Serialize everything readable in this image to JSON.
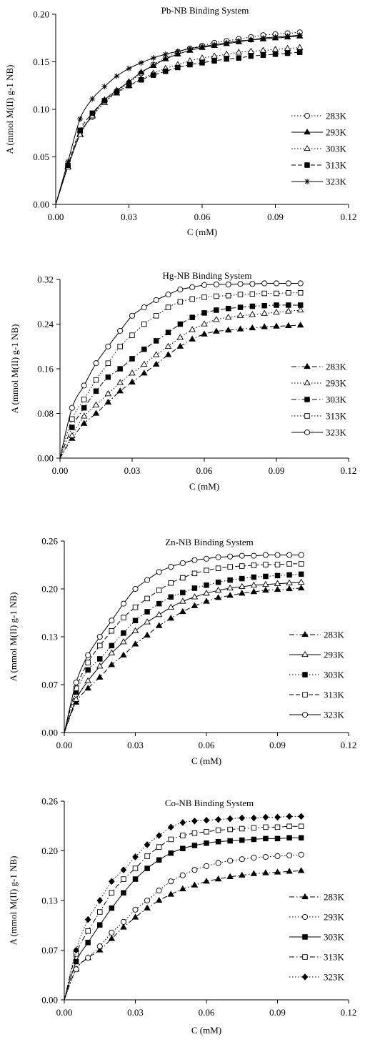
{
  "chart_data": [
    {
      "type": "line",
      "title": "Pb-NB Binding System",
      "xlabel": "C (mM)",
      "ylabel": "A (mmol M(II) g-1 NB)",
      "xlim": [
        0,
        0.12
      ],
      "ylim": [
        0,
        0.2
      ],
      "xticks": [
        "0.00",
        "0.03",
        "0.06",
        "0.09",
        "0.12"
      ],
      "yticks": [
        "0.00",
        "0.05",
        "0.10",
        "0.15",
        "0.20"
      ],
      "legend_position": "right",
      "x": [
        0,
        0.005,
        0.01,
        0.015,
        0.02,
        0.025,
        0.03,
        0.035,
        0.04,
        0.045,
        0.05,
        0.055,
        0.06,
        0.065,
        0.07,
        0.075,
        0.08,
        0.085,
        0.09,
        0.095,
        0.1
      ],
      "series": [
        {
          "name": "283K",
          "marker": "circle-open",
          "dash": "dot",
          "values": [
            0,
            0.04,
            0.076,
            0.092,
            0.108,
            0.119,
            0.128,
            0.138,
            0.147,
            0.154,
            0.16,
            0.164,
            0.167,
            0.17,
            0.172,
            0.174,
            0.176,
            0.178,
            0.179,
            0.18,
            0.181
          ]
        },
        {
          "name": "293K",
          "marker": "triangle-filled",
          "dash": "solid",
          "values": [
            0,
            0.04,
            0.074,
            0.094,
            0.11,
            0.12,
            0.129,
            0.139,
            0.146,
            0.153,
            0.158,
            0.162,
            0.165,
            0.167,
            0.169,
            0.171,
            0.173,
            0.174,
            0.175,
            0.176,
            0.177
          ]
        },
        {
          "name": "303K",
          "marker": "triangle-open",
          "dash": "dot",
          "values": [
            0,
            0.039,
            0.073,
            0.093,
            0.107,
            0.117,
            0.125,
            0.132,
            0.138,
            0.143,
            0.147,
            0.151,
            0.154,
            0.156,
            0.158,
            0.16,
            0.161,
            0.162,
            0.163,
            0.164,
            0.165
          ]
        },
        {
          "name": "313K",
          "marker": "square-filled",
          "dash": "dash",
          "values": [
            0,
            0.041,
            0.078,
            0.096,
            0.109,
            0.118,
            0.125,
            0.131,
            0.136,
            0.14,
            0.144,
            0.147,
            0.149,
            0.151,
            0.153,
            0.154,
            0.156,
            0.157,
            0.158,
            0.159,
            0.16
          ]
        },
        {
          "name": "323K",
          "marker": "star",
          "dash": "solid",
          "values": [
            0,
            0.045,
            0.09,
            0.111,
            0.124,
            0.135,
            0.143,
            0.149,
            0.154,
            0.158,
            0.161,
            0.164,
            0.166,
            0.168,
            0.17,
            0.172,
            0.173,
            0.175,
            0.176,
            0.177,
            0.178
          ]
        }
      ]
    },
    {
      "type": "line",
      "title": "Hg-NB Binding System",
      "xlabel": "C (mM)",
      "ylabel": "A (mmol M(II) g-1 NB)",
      "xlim": [
        0,
        0.12
      ],
      "ylim": [
        0,
        0.32
      ],
      "xticks": [
        "0.00",
        "0.03",
        "0.06",
        "0.09",
        "0.12"
      ],
      "yticks": [
        "0.00",
        "0.08",
        "0.16",
        "0.24",
        "0.32"
      ],
      "legend_position": "right",
      "x": [
        0,
        0.005,
        0.01,
        0.015,
        0.02,
        0.025,
        0.03,
        0.035,
        0.04,
        0.045,
        0.05,
        0.055,
        0.06,
        0.065,
        0.07,
        0.075,
        0.08,
        0.085,
        0.09,
        0.095,
        0.1
      ],
      "series": [
        {
          "name": "283K",
          "marker": "triangle-filled",
          "dash": "dashdot",
          "values": [
            0,
            0.035,
            0.062,
            0.08,
            0.1,
            0.12,
            0.136,
            0.152,
            0.168,
            0.185,
            0.2,
            0.213,
            0.222,
            0.227,
            0.229,
            0.231,
            0.233,
            0.235,
            0.236,
            0.237,
            0.238
          ]
        },
        {
          "name": "293K",
          "marker": "triangle-open",
          "dash": "dot",
          "values": [
            0,
            0.04,
            0.075,
            0.095,
            0.115,
            0.135,
            0.152,
            0.168,
            0.185,
            0.2,
            0.216,
            0.23,
            0.24,
            0.248,
            0.252,
            0.255,
            0.257,
            0.259,
            0.261,
            0.263,
            0.265
          ]
        },
        {
          "name": "303K",
          "marker": "square-filled",
          "dash": "dashdot",
          "values": [
            0,
            0.055,
            0.09,
            0.12,
            0.145,
            0.16,
            0.178,
            0.195,
            0.21,
            0.225,
            0.24,
            0.252,
            0.26,
            0.265,
            0.268,
            0.27,
            0.272,
            0.273,
            0.274,
            0.274,
            0.274
          ]
        },
        {
          "name": "313K",
          "marker": "square-open",
          "dash": "dot",
          "values": [
            0,
            0.07,
            0.105,
            0.14,
            0.17,
            0.2,
            0.22,
            0.24,
            0.255,
            0.27,
            0.28,
            0.285,
            0.288,
            0.29,
            0.291,
            0.293,
            0.294,
            0.295,
            0.295,
            0.296,
            0.296
          ]
        },
        {
          "name": "323K",
          "marker": "circle-open",
          "dash": "solid",
          "values": [
            0,
            0.09,
            0.13,
            0.17,
            0.2,
            0.228,
            0.255,
            0.27,
            0.283,
            0.293,
            0.302,
            0.306,
            0.31,
            0.311,
            0.311,
            0.312,
            0.312,
            0.313,
            0.313,
            0.313,
            0.313
          ]
        }
      ]
    },
    {
      "type": "line",
      "title": "Zn-NB Binding System",
      "xlabel": "C (mM)",
      "ylabel": "A (mmol M(II) g-1 NB)",
      "xlim": [
        0,
        0.12
      ],
      "ylim": [
        0,
        0.26
      ],
      "xticks": [
        "0.00",
        "0.03",
        "0.06",
        "0.09",
        "0.12"
      ],
      "yticks": [
        "0.00",
        "0.07",
        "0.13",
        "0.20",
        "0.26"
      ],
      "legend_position": "right",
      "x": [
        0,
        0.005,
        0.01,
        0.015,
        0.02,
        0.025,
        0.03,
        0.035,
        0.04,
        0.045,
        0.05,
        0.055,
        0.06,
        0.065,
        0.07,
        0.075,
        0.08,
        0.085,
        0.09,
        0.095,
        0.1
      ],
      "series": [
        {
          "name": "283K",
          "marker": "triangle-filled",
          "dash": "dashdot",
          "values": [
            0,
            0.041,
            0.06,
            0.075,
            0.092,
            0.105,
            0.12,
            0.132,
            0.145,
            0.155,
            0.164,
            0.172,
            0.178,
            0.183,
            0.186,
            0.189,
            0.191,
            0.193,
            0.194,
            0.195,
            0.196
          ]
        },
        {
          "name": "293K",
          "marker": "triangle-open",
          "dash": "solid",
          "values": [
            0,
            0.045,
            0.07,
            0.09,
            0.108,
            0.123,
            0.138,
            0.15,
            0.16,
            0.17,
            0.178,
            0.184,
            0.189,
            0.193,
            0.196,
            0.198,
            0.2,
            0.201,
            0.202,
            0.203,
            0.204
          ]
        },
        {
          "name": "303K",
          "marker": "square-filled",
          "dash": "dot",
          "values": [
            0,
            0.055,
            0.085,
            0.1,
            0.118,
            0.135,
            0.152,
            0.164,
            0.175,
            0.184,
            0.19,
            0.196,
            0.2,
            0.204,
            0.207,
            0.209,
            0.211,
            0.212,
            0.213,
            0.214,
            0.215
          ]
        },
        {
          "name": "313K",
          "marker": "square-open",
          "dash": "dash",
          "values": [
            0,
            0.06,
            0.095,
            0.118,
            0.138,
            0.156,
            0.17,
            0.182,
            0.193,
            0.203,
            0.21,
            0.216,
            0.22,
            0.223,
            0.225,
            0.226,
            0.227,
            0.228,
            0.228,
            0.229,
            0.229
          ]
        },
        {
          "name": "323K",
          "marker": "circle-open",
          "dash": "solid",
          "values": [
            0,
            0.068,
            0.105,
            0.13,
            0.152,
            0.175,
            0.195,
            0.207,
            0.218,
            0.225,
            0.23,
            0.234,
            0.236,
            0.238,
            0.239,
            0.24,
            0.24,
            0.241,
            0.241,
            0.241,
            0.241
          ]
        }
      ]
    },
    {
      "type": "line",
      "title": "Co-NB Binding System",
      "xlabel": "C (mM)",
      "ylabel": "A (mmol M(II) g-1 NB)",
      "xlim": [
        0,
        0.12
      ],
      "ylim": [
        0,
        0.26
      ],
      "xticks": [
        "0.00",
        "0.03",
        "0.06",
        "0.09",
        "0.12"
      ],
      "yticks": [
        "0.00",
        "0.07",
        "0.13",
        "0.20",
        "0.26"
      ],
      "legend_position": "right",
      "x": [
        0,
        0.005,
        0.01,
        0.015,
        0.02,
        0.025,
        0.03,
        0.035,
        0.04,
        0.045,
        0.05,
        0.055,
        0.06,
        0.065,
        0.07,
        0.075,
        0.08,
        0.085,
        0.09,
        0.095,
        0.1
      ],
      "series": [
        {
          "name": "283K",
          "marker": "triangle-filled",
          "dash": "dashdot",
          "values": [
            0,
            0.04,
            0.055,
            0.065,
            0.08,
            0.095,
            0.108,
            0.12,
            0.13,
            0.138,
            0.145,
            0.15,
            0.155,
            0.158,
            0.161,
            0.163,
            0.165,
            0.166,
            0.167,
            0.168,
            0.169
          ]
        },
        {
          "name": "293K",
          "marker": "circle-open",
          "dash": "dot",
          "values": [
            0,
            0.04,
            0.055,
            0.07,
            0.088,
            0.102,
            0.118,
            0.13,
            0.143,
            0.155,
            0.163,
            0.17,
            0.175,
            0.179,
            0.182,
            0.184,
            0.186,
            0.187,
            0.188,
            0.189,
            0.19
          ]
        },
        {
          "name": "303K",
          "marker": "square-filled",
          "dash": "solid",
          "values": [
            0,
            0.05,
            0.075,
            0.098,
            0.12,
            0.14,
            0.158,
            0.172,
            0.183,
            0.192,
            0.198,
            0.202,
            0.205,
            0.207,
            0.208,
            0.209,
            0.21,
            0.211,
            0.211,
            0.212,
            0.212
          ]
        },
        {
          "name": "313K",
          "marker": "square-open",
          "dash": "dashdot",
          "values": [
            0,
            0.06,
            0.09,
            0.115,
            0.14,
            0.158,
            0.172,
            0.188,
            0.2,
            0.21,
            0.215,
            0.218,
            0.22,
            0.222,
            0.223,
            0.224,
            0.225,
            0.226,
            0.226,
            0.227,
            0.227
          ]
        },
        {
          "name": "323K",
          "marker": "diamond-filled",
          "dash": "dot",
          "values": [
            0,
            0.065,
            0.105,
            0.13,
            0.155,
            0.17,
            0.187,
            0.203,
            0.215,
            0.226,
            0.232,
            0.234,
            0.235,
            0.236,
            0.237,
            0.238,
            0.238,
            0.239,
            0.239,
            0.24,
            0.24
          ]
        }
      ]
    }
  ]
}
